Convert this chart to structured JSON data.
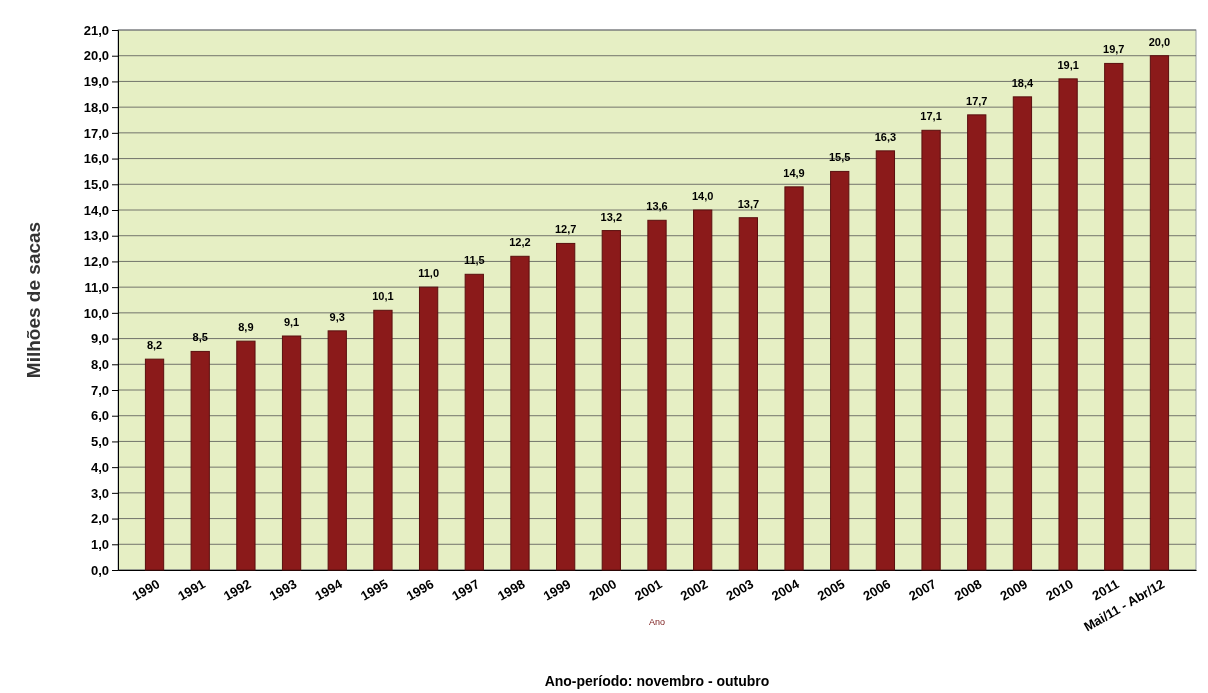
{
  "chart_data": {
    "type": "bar",
    "ylabel": "Milhões de sacas",
    "xlabel": "Ano-período: novembro - outubro",
    "annotations": [
      "Ano"
    ],
    "categories": [
      "1990",
      "1991",
      "1992",
      "1993",
      "1994",
      "1995",
      "1996",
      "1997",
      "1998",
      "1999",
      "2000",
      "2001",
      "2002",
      "2003",
      "2004",
      "2005",
      "2006",
      "2007",
      "2008",
      "2009",
      "2010",
      "2011",
      "Mai/11 - Abr/12"
    ],
    "values": [
      8.2,
      8.5,
      8.9,
      9.1,
      9.3,
      10.1,
      11.0,
      11.5,
      12.2,
      12.7,
      13.2,
      13.6,
      14.0,
      13.7,
      14.9,
      15.5,
      16.3,
      17.1,
      17.7,
      18.4,
      19.1,
      19.7,
      20.0
    ],
    "value_labels": [
      "8,2",
      "8,5",
      "8,9",
      "9,1",
      "9,3",
      "10,1",
      "11,0",
      "11,5",
      "12,2",
      "12,7",
      "13,2",
      "13,6",
      "14,0",
      "13,7",
      "14,9",
      "15,5",
      "16,3",
      "17,1",
      "17,7",
      "18,4",
      "19,1",
      "19,7",
      "20,0"
    ],
    "color": "#8b1a1a",
    "ylim": [
      0,
      21
    ],
    "yticks": [
      {
        "value": 0,
        "label": "0,0"
      },
      {
        "value": 1,
        "label": "1,0"
      },
      {
        "value": 2,
        "label": "2,0"
      },
      {
        "value": 3,
        "label": "3,0"
      },
      {
        "value": 4,
        "label": "4,0"
      },
      {
        "value": 5,
        "label": "5,0"
      },
      {
        "value": 6,
        "label": "6,0"
      },
      {
        "value": 7,
        "label": "7,0"
      },
      {
        "value": 8,
        "label": "8,0"
      },
      {
        "value": 9,
        "label": "9,0"
      },
      {
        "value": 10,
        "label": "10,0"
      },
      {
        "value": 11,
        "label": "11,0"
      },
      {
        "value": 12,
        "label": "12,0"
      },
      {
        "value": 13,
        "label": "13,0"
      },
      {
        "value": 14,
        "label": "14,0"
      },
      {
        "value": 15,
        "label": "15,0"
      },
      {
        "value": 16,
        "label": "16,0"
      },
      {
        "value": 17,
        "label": "17,0"
      },
      {
        "value": 18,
        "label": "18,0"
      },
      {
        "value": 19,
        "label": "19,0"
      },
      {
        "value": 20,
        "label": "20,0"
      },
      {
        "value": 21,
        "label": "21,0"
      }
    ],
    "grid": "y"
  }
}
